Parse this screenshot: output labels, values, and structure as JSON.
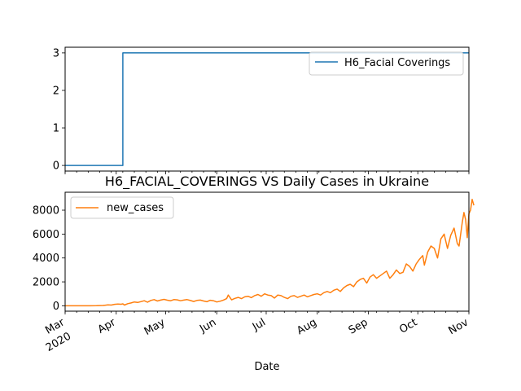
{
  "chart_data": [
    {
      "type": "line",
      "title": "",
      "xlabel": "",
      "ylabel": "",
      "x_start": "2020-03-01",
      "x_end": "2020-11-01",
      "ylim": [
        -0.15,
        3.15
      ],
      "yticks": [
        0,
        1,
        2,
        3
      ],
      "grid": false,
      "legend_position": "upper right",
      "series": [
        {
          "name": "H6_Facial Coverings",
          "color": "#1f77b4",
          "points": [
            [
              "2020-03-01",
              0
            ],
            [
              "2020-04-04",
              0
            ],
            [
              "2020-04-05",
              3
            ],
            [
              "2020-11-01",
              3
            ]
          ]
        }
      ]
    },
    {
      "type": "line",
      "title": "H6_FACIAL_COVERINGS VS Daily Cases in Ukraine",
      "xlabel": "Date",
      "ylabel": "",
      "x_start": "2020-03-01",
      "x_end": "2020-11-01",
      "ylim": [
        -450,
        9500
      ],
      "yticks": [
        0,
        2000,
        4000,
        6000,
        8000
      ],
      "grid": false,
      "legend_position": "upper left",
      "xtick_labels": [
        {
          "date": "2020-03-01",
          "label": "Mar",
          "sublabel": "2020"
        },
        {
          "date": "2020-04-01",
          "label": "Apr",
          "sublabel": ""
        },
        {
          "date": "2020-05-01",
          "label": "May",
          "sublabel": ""
        },
        {
          "date": "2020-06-01",
          "label": "Jun",
          "sublabel": ""
        },
        {
          "date": "2020-07-01",
          "label": "Jul",
          "sublabel": ""
        },
        {
          "date": "2020-08-01",
          "label": "Aug",
          "sublabel": ""
        },
        {
          "date": "2020-09-01",
          "label": "Sep",
          "sublabel": ""
        },
        {
          "date": "2020-10-01",
          "label": "Oct",
          "sublabel": ""
        },
        {
          "date": "2020-11-01",
          "label": "Nov",
          "sublabel": ""
        }
      ],
      "series": [
        {
          "name": "new_cases",
          "color": "#ff7f0e",
          "points": [
            [
              "2020-03-01",
              0
            ],
            [
              "2020-03-10",
              1
            ],
            [
              "2020-03-16",
              3
            ],
            [
              "2020-03-20",
              10
            ],
            [
              "2020-03-24",
              30
            ],
            [
              "2020-03-27",
              80
            ],
            [
              "2020-03-29",
              60
            ],
            [
              "2020-03-31",
              120
            ],
            [
              "2020-04-02",
              150
            ],
            [
              "2020-04-04",
              130
            ],
            [
              "2020-04-05",
              160
            ],
            [
              "2020-04-06",
              60
            ],
            [
              "2020-04-08",
              180
            ],
            [
              "2020-04-10",
              240
            ],
            [
              "2020-04-12",
              320
            ],
            [
              "2020-04-14",
              280
            ],
            [
              "2020-04-16",
              350
            ],
            [
              "2020-04-18",
              420
            ],
            [
              "2020-04-20",
              300
            ],
            [
              "2020-04-22",
              450
            ],
            [
              "2020-04-24",
              520
            ],
            [
              "2020-04-26",
              400
            ],
            [
              "2020-04-28",
              480
            ],
            [
              "2020-04-30",
              540
            ],
            [
              "2020-05-02",
              470
            ],
            [
              "2020-05-04",
              420
            ],
            [
              "2020-05-06",
              520
            ],
            [
              "2020-05-08",
              500
            ],
            [
              "2020-05-10",
              420
            ],
            [
              "2020-05-12",
              480
            ],
            [
              "2020-05-14",
              520
            ],
            [
              "2020-05-16",
              440
            ],
            [
              "2020-05-18",
              360
            ],
            [
              "2020-05-20",
              450
            ],
            [
              "2020-05-22",
              480
            ],
            [
              "2020-05-24",
              400
            ],
            [
              "2020-05-26",
              340
            ],
            [
              "2020-05-28",
              460
            ],
            [
              "2020-05-30",
              420
            ],
            [
              "2020-06-01",
              320
            ],
            [
              "2020-06-03",
              380
            ],
            [
              "2020-06-05",
              480
            ],
            [
              "2020-06-07",
              600
            ],
            [
              "2020-06-08",
              900
            ],
            [
              "2020-06-10",
              500
            ],
            [
              "2020-06-12",
              620
            ],
            [
              "2020-06-14",
              700
            ],
            [
              "2020-06-16",
              600
            ],
            [
              "2020-06-18",
              750
            ],
            [
              "2020-06-20",
              800
            ],
            [
              "2020-06-22",
              680
            ],
            [
              "2020-06-24",
              850
            ],
            [
              "2020-06-26",
              950
            ],
            [
              "2020-06-28",
              800
            ],
            [
              "2020-06-30",
              1000
            ],
            [
              "2020-07-02",
              900
            ],
            [
              "2020-07-04",
              850
            ],
            [
              "2020-07-06",
              650
            ],
            [
              "2020-07-08",
              900
            ],
            [
              "2020-07-10",
              850
            ],
            [
              "2020-07-12",
              700
            ],
            [
              "2020-07-14",
              600
            ],
            [
              "2020-07-16",
              800
            ],
            [
              "2020-07-18",
              850
            ],
            [
              "2020-07-20",
              700
            ],
            [
              "2020-07-22",
              800
            ],
            [
              "2020-07-24",
              900
            ],
            [
              "2020-07-26",
              750
            ],
            [
              "2020-07-28",
              850
            ],
            [
              "2020-07-30",
              950
            ],
            [
              "2020-08-01",
              1000
            ],
            [
              "2020-08-03",
              900
            ],
            [
              "2020-08-05",
              1100
            ],
            [
              "2020-08-07",
              1200
            ],
            [
              "2020-08-09",
              1100
            ],
            [
              "2020-08-11",
              1300
            ],
            [
              "2020-08-13",
              1400
            ],
            [
              "2020-08-15",
              1200
            ],
            [
              "2020-08-17",
              1500
            ],
            [
              "2020-08-19",
              1700
            ],
            [
              "2020-08-21",
              1800
            ],
            [
              "2020-08-23",
              1600
            ],
            [
              "2020-08-25",
              2000
            ],
            [
              "2020-08-27",
              2200
            ],
            [
              "2020-08-29",
              2300
            ],
            [
              "2020-08-31",
              1900
            ],
            [
              "2020-09-02",
              2400
            ],
            [
              "2020-09-04",
              2600
            ],
            [
              "2020-09-06",
              2300
            ],
            [
              "2020-09-08",
              2500
            ],
            [
              "2020-09-10",
              2700
            ],
            [
              "2020-09-12",
              2900
            ],
            [
              "2020-09-14",
              2300
            ],
            [
              "2020-09-16",
              2600
            ],
            [
              "2020-09-18",
              3000
            ],
            [
              "2020-09-20",
              2700
            ],
            [
              "2020-09-22",
              2800
            ],
            [
              "2020-09-24",
              3500
            ],
            [
              "2020-09-26",
              3300
            ],
            [
              "2020-09-28",
              2900
            ],
            [
              "2020-09-30",
              3500
            ],
            [
              "2020-10-02",
              3900
            ],
            [
              "2020-10-04",
              4200
            ],
            [
              "2020-10-05",
              3400
            ],
            [
              "2020-10-07",
              4500
            ],
            [
              "2020-10-09",
              5000
            ],
            [
              "2020-10-11",
              4800
            ],
            [
              "2020-10-13",
              4000
            ],
            [
              "2020-10-15",
              5600
            ],
            [
              "2020-10-17",
              6000
            ],
            [
              "2020-10-19",
              4800
            ],
            [
              "2020-10-21",
              5900
            ],
            [
              "2020-10-23",
              6500
            ],
            [
              "2020-10-25",
              5200
            ],
            [
              "2020-10-26",
              5000
            ],
            [
              "2020-10-28",
              7000
            ],
            [
              "2020-10-29",
              7800
            ],
            [
              "2020-10-30",
              7200
            ],
            [
              "2020-10-31",
              5700
            ],
            [
              "2020-11-01",
              7700
            ],
            [
              "2020-11-02",
              8000
            ],
            [
              "2020-11-03",
              8900
            ],
            [
              "2020-11-04",
              8400
            ]
          ]
        }
      ]
    }
  ]
}
